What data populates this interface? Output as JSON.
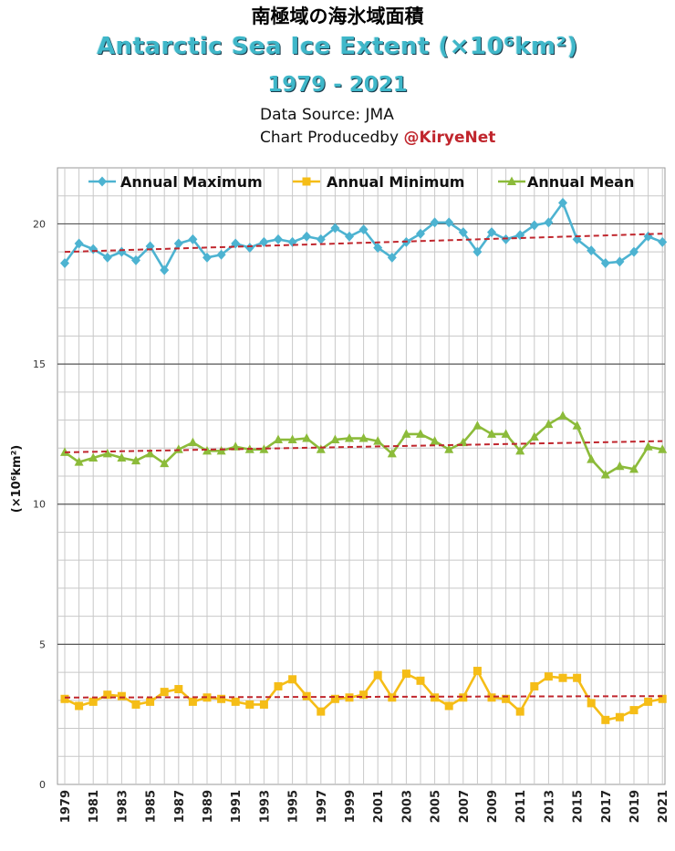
{
  "header": {
    "title_jp": "南極域の海氷域面積",
    "title_en": "Antarctic Sea Ice Extent (×10⁶km²)",
    "years": "1979 - 2021",
    "source": "Data Source: JMA",
    "produced_label": "Chart Producedby ",
    "produced_handle": "@KiryeNet"
  },
  "chart_data": {
    "type": "line",
    "title": "Antarctic Sea Ice Extent (×10⁶km²)",
    "ylabel": "(×10⁶km²)",
    "xlabel": "",
    "ylim": [
      0,
      22
    ],
    "yticks": [
      0,
      5,
      10,
      15,
      20
    ],
    "x": [
      1979,
      1980,
      1981,
      1982,
      1983,
      1984,
      1985,
      1986,
      1987,
      1988,
      1989,
      1990,
      1991,
      1992,
      1993,
      1994,
      1995,
      1996,
      1997,
      1998,
      1999,
      2000,
      2001,
      2002,
      2003,
      2004,
      2005,
      2006,
      2007,
      2008,
      2009,
      2010,
      2011,
      2012,
      2013,
      2014,
      2015,
      2016,
      2017,
      2018,
      2019,
      2020,
      2021
    ],
    "xtick_labels": [
      "1979",
      "1981",
      "1983",
      "1985",
      "1987",
      "1989",
      "1991",
      "1993",
      "1995",
      "1997",
      "1999",
      "2001",
      "2003",
      "2005",
      "2007",
      "2009",
      "2011",
      "2013",
      "2015",
      "2017",
      "2019",
      "2021"
    ],
    "grid": true,
    "legend_position": "top",
    "series": [
      {
        "name": "Annual Maximum",
        "color": "#4db3d1",
        "marker": "diamond",
        "values": [
          18.6,
          19.3,
          19.1,
          18.8,
          19.0,
          18.7,
          19.2,
          18.35,
          19.3,
          19.45,
          18.8,
          18.9,
          19.3,
          19.15,
          19.35,
          19.45,
          19.35,
          19.55,
          19.45,
          19.85,
          19.55,
          19.8,
          19.15,
          18.8,
          19.35,
          19.65,
          20.05,
          20.05,
          19.7,
          19.0,
          19.7,
          19.45,
          19.6,
          19.95,
          20.05,
          20.75,
          19.45,
          19.05,
          18.6,
          18.65,
          19.0,
          19.55,
          19.35
        ],
        "trend": [
          19.0,
          19.65
        ]
      },
      {
        "name": "Annual Minimum",
        "color": "#f5bd17",
        "marker": "square",
        "values": [
          3.05,
          2.8,
          2.95,
          3.2,
          3.15,
          2.85,
          2.95,
          3.3,
          3.4,
          2.95,
          3.1,
          3.05,
          2.95,
          2.85,
          2.85,
          3.5,
          3.75,
          3.15,
          2.6,
          3.05,
          3.1,
          3.2,
          3.9,
          3.1,
          3.95,
          3.7,
          3.1,
          2.8,
          3.1,
          4.05,
          3.1,
          3.05,
          2.6,
          3.5,
          3.85,
          3.8,
          3.8,
          2.9,
          2.3,
          2.4,
          2.65,
          2.95,
          3.05
        ],
        "trend": [
          3.1,
          3.15
        ]
      },
      {
        "name": "Annual Mean",
        "color": "#8cbb3a",
        "marker": "triangle",
        "values": [
          11.85,
          11.5,
          11.65,
          11.8,
          11.65,
          11.55,
          11.8,
          11.45,
          11.95,
          12.2,
          11.9,
          11.9,
          12.05,
          11.95,
          11.95,
          12.3,
          12.3,
          12.35,
          11.95,
          12.3,
          12.35,
          12.35,
          12.25,
          11.8,
          12.5,
          12.5,
          12.25,
          11.95,
          12.2,
          12.8,
          12.5,
          12.5,
          11.9,
          12.4,
          12.85,
          13.15,
          12.8,
          11.6,
          11.05,
          11.35,
          11.25,
          12.05,
          11.95
        ],
        "trend": [
          11.85,
          12.25
        ]
      }
    ],
    "trend_color": "#c0262d"
  }
}
